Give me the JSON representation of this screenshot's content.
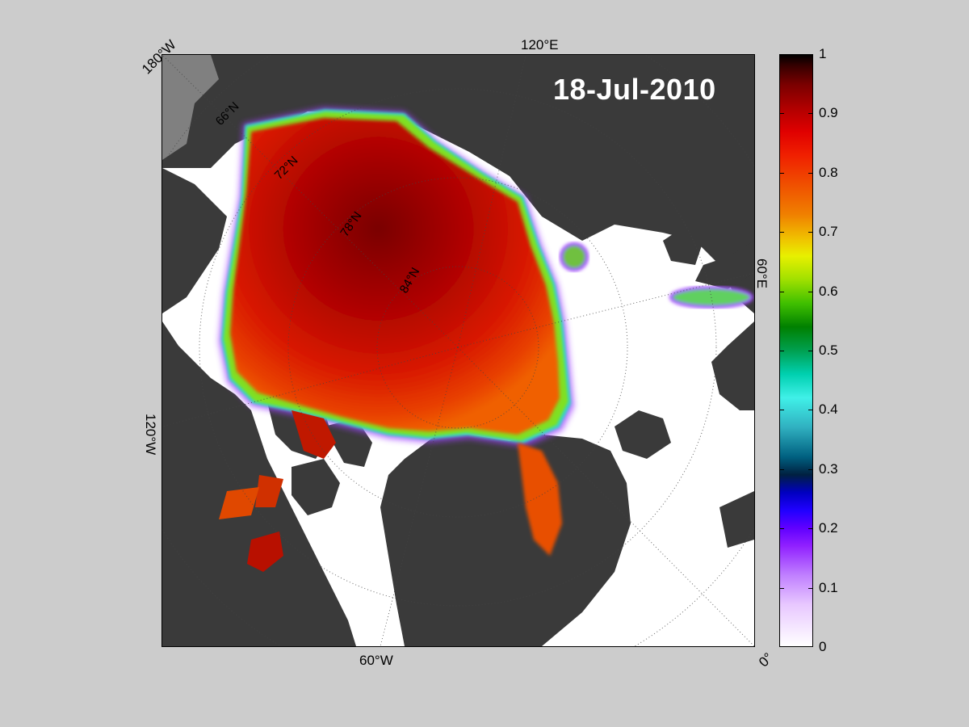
{
  "date_label": "18-Jul-2010",
  "longitude_labels": {
    "top_left": "180°W",
    "top": "120°E",
    "right": "60°E",
    "left": "120°W",
    "bottom": "60°W",
    "bottom_right": "0°"
  },
  "latitude_labels": [
    "66°N",
    "72°N",
    "78°N",
    "84°N"
  ],
  "colorbar": {
    "ticks": [
      "0",
      "0.1",
      "0.2",
      "0.3",
      "0.4",
      "0.5",
      "0.6",
      "0.7",
      "0.8",
      "0.9",
      "1"
    ],
    "range": [
      0,
      1
    ]
  },
  "colors": {
    "land": "#3a3a3a",
    "ocean_no_ice": "#ffffff",
    "missing": "#808080",
    "background": "#cccccc"
  }
}
